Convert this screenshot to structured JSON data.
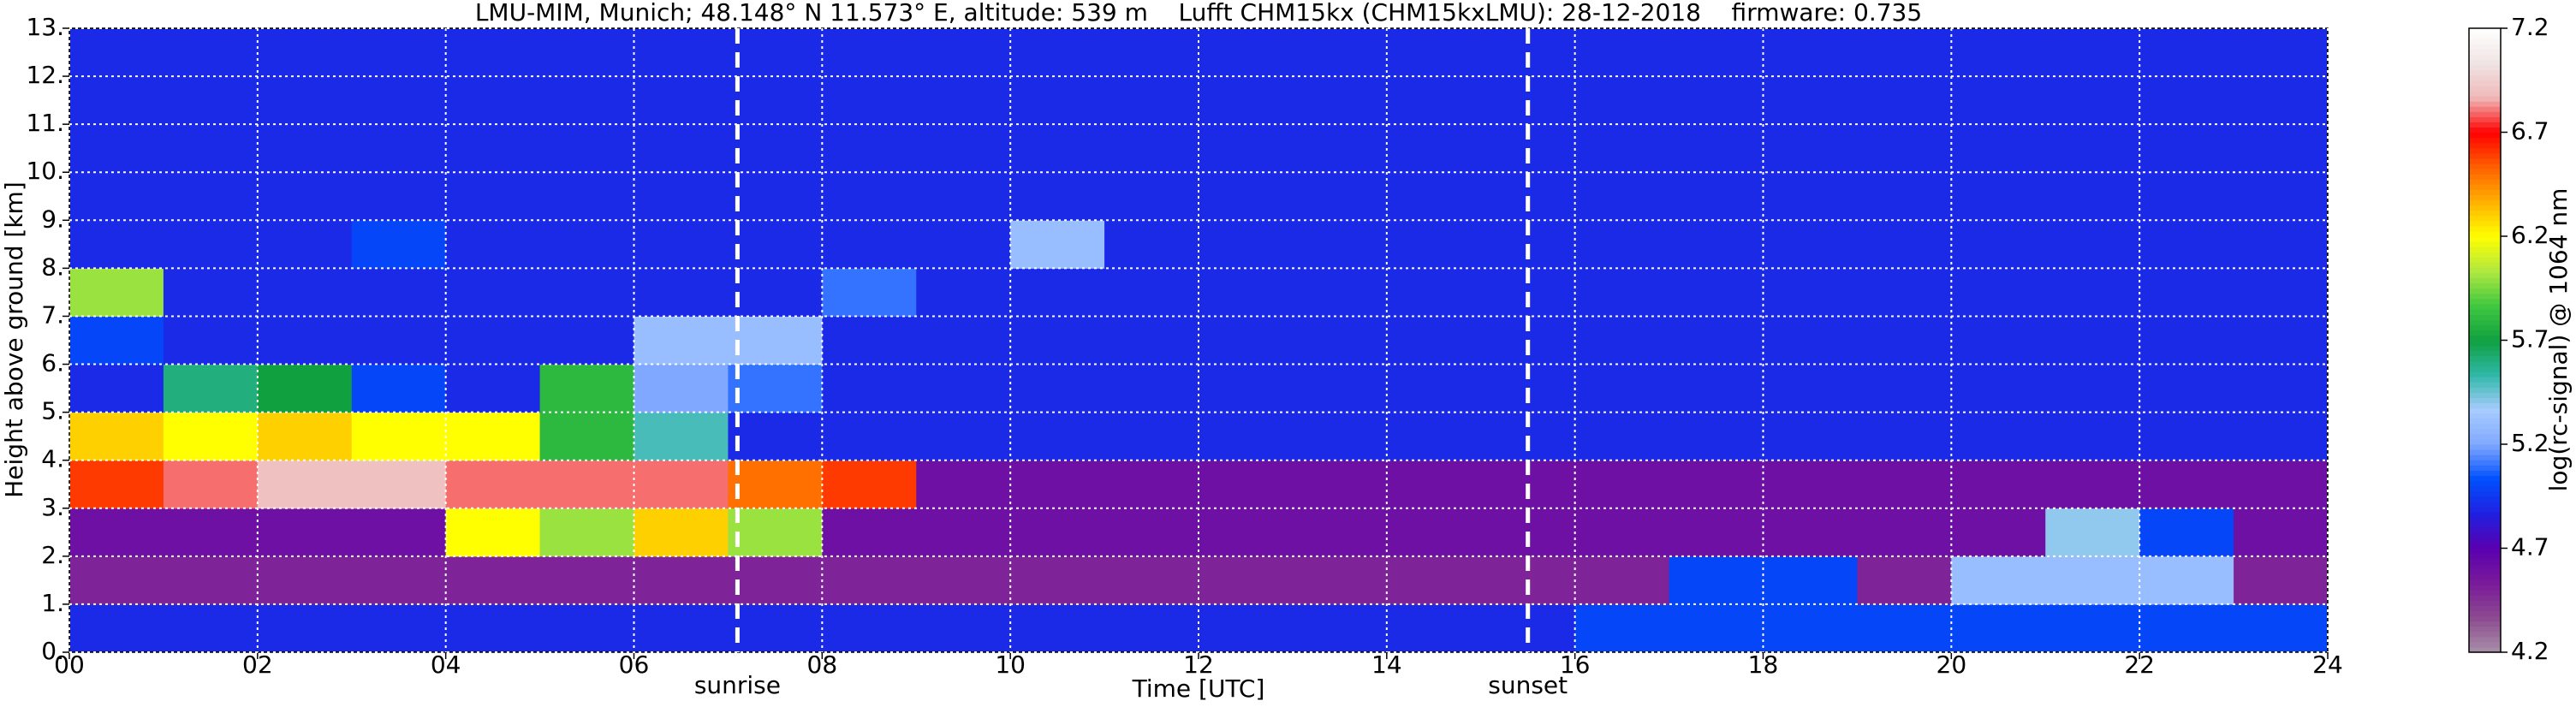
{
  "chart_data": {
    "type": "heatmap",
    "title": "LMU-MIM, Munich; 48.148° N 11.573° E, altitude: 539 m    Lufft CHM15kx (CHM15kxLMU): 28-12-2018    firmware: 0.735",
    "xlabel": "Time [UTC]",
    "ylabel": "Height above ground [km]",
    "colorbar_label": "log(rc-signal) @ 1064 nm",
    "xbins": [
      0,
      1,
      2,
      3,
      4,
      5,
      6,
      7,
      8,
      9,
      10,
      11,
      12,
      13,
      14,
      15,
      16,
      17,
      18,
      19,
      20,
      21,
      22,
      23,
      24
    ],
    "ybins": [
      0,
      1,
      2,
      3,
      4,
      5,
      6,
      7,
      8,
      9,
      10,
      11,
      12,
      13
    ],
    "z": [
      [
        4.9,
        4.9,
        4.9,
        4.9,
        4.9,
        4.9,
        4.9,
        4.9,
        4.9,
        4.9,
        4.9,
        4.9,
        4.9,
        4.9,
        4.9,
        4.9,
        5.0,
        5.0,
        5.0,
        5.0,
        5.0,
        5.0,
        5.0,
        5.0
      ],
      [
        4.5,
        4.5,
        4.5,
        4.5,
        4.5,
        4.5,
        4.5,
        4.5,
        4.5,
        4.5,
        4.5,
        4.5,
        4.5,
        4.5,
        4.5,
        4.5,
        4.5,
        5.0,
        5.0,
        4.5,
        5.3,
        5.3,
        5.3,
        4.5
      ],
      [
        4.6,
        4.6,
        4.6,
        4.6,
        6.2,
        6.0,
        6.3,
        6.0,
        4.6,
        4.6,
        4.6,
        4.6,
        4.6,
        4.6,
        4.6,
        4.6,
        4.6,
        4.6,
        4.6,
        4.6,
        4.6,
        5.4,
        5.0,
        4.6
      ],
      [
        6.6,
        6.8,
        6.9,
        6.9,
        6.8,
        6.8,
        6.8,
        6.5,
        6.6,
        4.6,
        4.6,
        4.6,
        4.6,
        4.6,
        4.6,
        4.6,
        4.6,
        4.6,
        4.6,
        4.6,
        4.6,
        4.6,
        4.6,
        4.6
      ],
      [
        6.3,
        6.2,
        6.3,
        6.2,
        6.2,
        5.8,
        5.5,
        4.9,
        4.9,
        4.9,
        4.9,
        4.9,
        4.9,
        4.9,
        4.9,
        4.9,
        4.9,
        4.9,
        4.9,
        4.9,
        4.9,
        4.9,
        4.9,
        4.9
      ],
      [
        4.9,
        5.6,
        5.7,
        5.0,
        4.9,
        5.8,
        5.2,
        5.1,
        4.9,
        4.9,
        4.9,
        4.9,
        4.9,
        4.9,
        4.9,
        4.9,
        4.9,
        4.9,
        4.9,
        4.9,
        4.9,
        4.9,
        4.9,
        4.9
      ],
      [
        5.0,
        4.9,
        4.9,
        4.9,
        4.9,
        4.9,
        5.3,
        5.3,
        4.9,
        4.9,
        4.9,
        4.9,
        4.9,
        4.9,
        4.9,
        4.9,
        4.9,
        4.9,
        4.9,
        4.9,
        4.9,
        4.9,
        4.9,
        4.9
      ],
      [
        6.0,
        4.9,
        4.9,
        4.9,
        4.9,
        4.9,
        4.9,
        4.9,
        5.1,
        4.9,
        4.9,
        4.9,
        4.9,
        4.9,
        4.9,
        4.9,
        4.9,
        4.9,
        4.9,
        4.9,
        4.9,
        4.9,
        4.9,
        4.9
      ],
      [
        4.9,
        4.9,
        4.9,
        5.0,
        4.9,
        4.9,
        4.9,
        4.9,
        4.9,
        4.9,
        5.3,
        4.9,
        4.9,
        4.9,
        4.9,
        4.9,
        4.9,
        4.9,
        4.9,
        4.9,
        4.9,
        4.9,
        4.9,
        4.9
      ],
      [
        4.9,
        4.9,
        4.9,
        4.9,
        4.9,
        4.9,
        4.9,
        4.9,
        4.9,
        4.9,
        4.9,
        4.9,
        4.9,
        4.9,
        4.9,
        4.9,
        4.9,
        4.9,
        4.9,
        4.9,
        4.9,
        4.9,
        4.9,
        4.9
      ],
      [
        4.9,
        4.9,
        4.9,
        4.9,
        4.9,
        4.9,
        4.9,
        4.9,
        4.9,
        4.9,
        4.9,
        4.9,
        4.9,
        4.9,
        4.9,
        4.9,
        4.9,
        4.9,
        4.9,
        4.9,
        4.9,
        4.9,
        4.9,
        4.9
      ],
      [
        4.9,
        4.9,
        4.9,
        4.9,
        4.9,
        4.9,
        4.9,
        4.9,
        4.9,
        4.9,
        4.9,
        4.9,
        4.9,
        4.9,
        4.9,
        4.9,
        4.9,
        4.9,
        4.9,
        4.9,
        4.9,
        4.9,
        4.9,
        4.9
      ],
      [
        4.9,
        4.9,
        4.9,
        4.9,
        4.9,
        4.9,
        4.9,
        4.9,
        4.9,
        4.9,
        4.9,
        4.9,
        4.9,
        4.9,
        4.9,
        4.9,
        4.9,
        4.9,
        4.9,
        4.9,
        4.9,
        4.9,
        4.9,
        4.9
      ]
    ],
    "xlim": [
      0,
      24
    ],
    "xticks": [
      {
        "value": 0,
        "label": "00"
      },
      {
        "value": 2,
        "label": "02"
      },
      {
        "value": 4,
        "label": "04"
      },
      {
        "value": 6,
        "label": "06"
      },
      {
        "value": 8,
        "label": "08"
      },
      {
        "value": 10,
        "label": "10"
      },
      {
        "value": 12,
        "label": "12"
      },
      {
        "value": 14,
        "label": "14"
      },
      {
        "value": 16,
        "label": "16"
      },
      {
        "value": 18,
        "label": "18"
      },
      {
        "value": 20,
        "label": "20"
      },
      {
        "value": 22,
        "label": "22"
      },
      {
        "value": 24,
        "label": "24"
      }
    ],
    "ylim": [
      0,
      13
    ],
    "yticks": [
      {
        "value": 0,
        "label": "0."
      },
      {
        "value": 1,
        "label": "1."
      },
      {
        "value": 2,
        "label": "2."
      },
      {
        "value": 3,
        "label": "3."
      },
      {
        "value": 4,
        "label": "4."
      },
      {
        "value": 5,
        "label": "5."
      },
      {
        "value": 6,
        "label": "6."
      },
      {
        "value": 7,
        "label": "7."
      },
      {
        "value": 8,
        "label": "8."
      },
      {
        "value": 9,
        "label": "9."
      },
      {
        "value": 10,
        "label": "10."
      },
      {
        "value": 11,
        "label": "11."
      },
      {
        "value": 12,
        "label": "12."
      },
      {
        "value": 13,
        "label": "13."
      }
    ],
    "zlim": [
      4.2,
      7.2
    ],
    "zticks": [
      4.2,
      4.7,
      5.2,
      5.7,
      6.2,
      6.7,
      7.2
    ],
    "colormap": [
      "#a890a8",
      "#8c4a90",
      "#7a1a9a",
      "#5a00b0",
      "#2020e0",
      "#0050ff",
      "#80a8ff",
      "#a8ccff",
      "#30b8a8",
      "#10a040",
      "#40c840",
      "#b0e840",
      "#ffff00",
      "#ffb000",
      "#ff6000",
      "#ff0000",
      "#f0b8b8",
      "#f0e4e4",
      "#ffffff"
    ],
    "events": [
      {
        "label": "sunrise",
        "x": 7.1
      },
      {
        "label": "sunset",
        "x": 15.5
      }
    ],
    "grid": true
  }
}
